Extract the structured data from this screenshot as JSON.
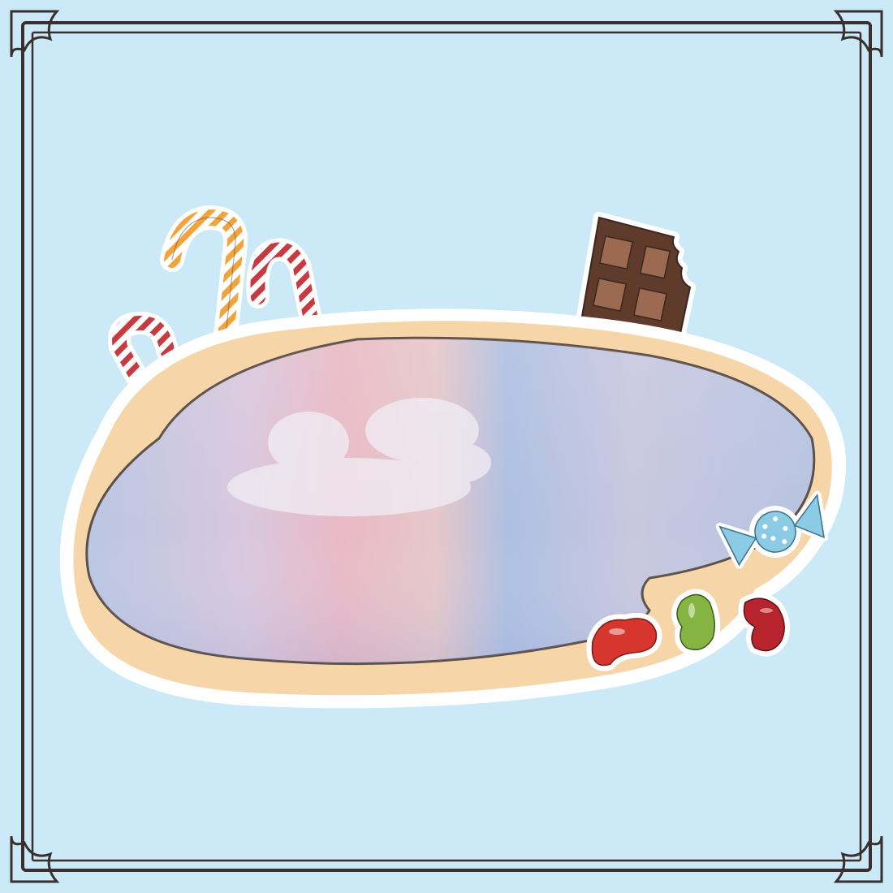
{
  "scene": {
    "background_color": "#cbe9f7",
    "frame_color": "#3a2f2c",
    "pool": {
      "rim_color": "#f6d6a8",
      "outline_color": "#5b4e48",
      "water_gradient": [
        "#b9c6e3",
        "#d9c7dd",
        "#e9b9c5",
        "#e6c7c9",
        "#aebfe2",
        "#c8c7df",
        "#b6c3e2"
      ],
      "reflection_color": "#f1eef5"
    },
    "decorations": {
      "candy_canes": [
        {
          "name": "candy-cane-red-left",
          "stripe_color": "#c73a3f"
        },
        {
          "name": "candy-cane-orange",
          "stripe_color": "#f2a43a"
        },
        {
          "name": "candy-cane-red-right",
          "stripe_color": "#c73a3f"
        }
      ],
      "chocolate_bar": {
        "color": "#5f3b2c",
        "square_color": "#9b6a50",
        "state": "bitten"
      },
      "wrapped_candy": {
        "color": "#8ccbe6",
        "dot_color": "#ffffff"
      },
      "jelly_beans": [
        {
          "name": "jelly-bean-red",
          "color": "#d7362f"
        },
        {
          "name": "jelly-bean-green",
          "color": "#86b443"
        },
        {
          "name": "jelly-bean-crimson",
          "color": "#b8242d"
        }
      ]
    }
  }
}
